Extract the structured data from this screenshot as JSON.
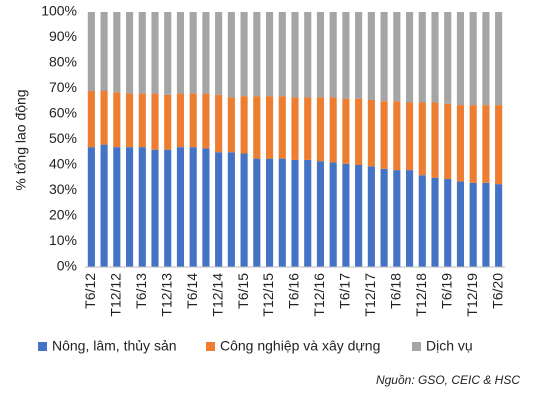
{
  "chart_data": {
    "type": "stacked_bar_percent",
    "y_label": "% tổng lao động",
    "source": "Nguồn: GSO, CEIC & HSC",
    "categories": [
      "T6/12",
      null,
      "T12/12",
      null,
      "T6/13",
      null,
      "T12/13",
      null,
      "T6/14",
      null,
      "T12/14",
      null,
      "T6/15",
      null,
      "T12/15",
      null,
      "T6/16",
      null,
      "T12/16",
      null,
      "T6/17",
      null,
      "T12/17",
      null,
      "T6/18",
      null,
      "T12/18",
      null,
      "T6/19",
      null,
      "T12/19",
      null,
      "T6/20"
    ],
    "series": [
      {
        "name": "Nông, lâm, thủy sản",
        "color": "#4472c4",
        "values": [
          47,
          48,
          47,
          47,
          47,
          46,
          46,
          47,
          47,
          46.5,
          45,
          45,
          44.5,
          42.5,
          42.5,
          42.5,
          42,
          42,
          41.5,
          41,
          40.5,
          40,
          39.5,
          38.5,
          38,
          38,
          36,
          35,
          34.5,
          33.5,
          33,
          33,
          32.5
        ]
      },
      {
        "name": "Công nghiệp và xây dựng",
        "color": "#ed7d31",
        "values": [
          22,
          21,
          21.5,
          21,
          21,
          22,
          21.5,
          21,
          21,
          21.5,
          22.5,
          21.5,
          22.5,
          24.5,
          24.5,
          24.5,
          24.5,
          24.5,
          25,
          25.5,
          25.5,
          26,
          26,
          26.5,
          27,
          26.5,
          28.5,
          29.5,
          29.5,
          30,
          30.5,
          30.5,
          31
        ]
      },
      {
        "name": "Dịch vụ",
        "color": "#a5a5a5",
        "values": [
          31,
          31,
          31.5,
          32,
          32,
          32,
          32.5,
          32,
          32,
          32,
          32.5,
          33.5,
          33,
          33,
          33,
          33,
          33.5,
          33.5,
          33.5,
          33.5,
          34,
          34,
          34.5,
          35,
          35,
          35.5,
          35.5,
          35.5,
          36,
          36.5,
          36.5,
          36.5,
          36.5
        ]
      }
    ],
    "ylim": [
      0,
      100
    ],
    "yticks": [
      {
        "value": 0,
        "label": "0%"
      },
      {
        "value": 10,
        "label": "10%"
      },
      {
        "value": 20,
        "label": "20%"
      },
      {
        "value": 30,
        "label": "30%"
      },
      {
        "value": 40,
        "label": "40%"
      },
      {
        "value": 50,
        "label": "50%"
      },
      {
        "value": 60,
        "label": "60%"
      },
      {
        "value": 70,
        "label": "70%"
      },
      {
        "value": 80,
        "label": "80%"
      },
      {
        "value": 90,
        "label": "90%"
      },
      {
        "value": 100,
        "label": "100%"
      }
    ],
    "grid": false,
    "legend": "bottom"
  }
}
